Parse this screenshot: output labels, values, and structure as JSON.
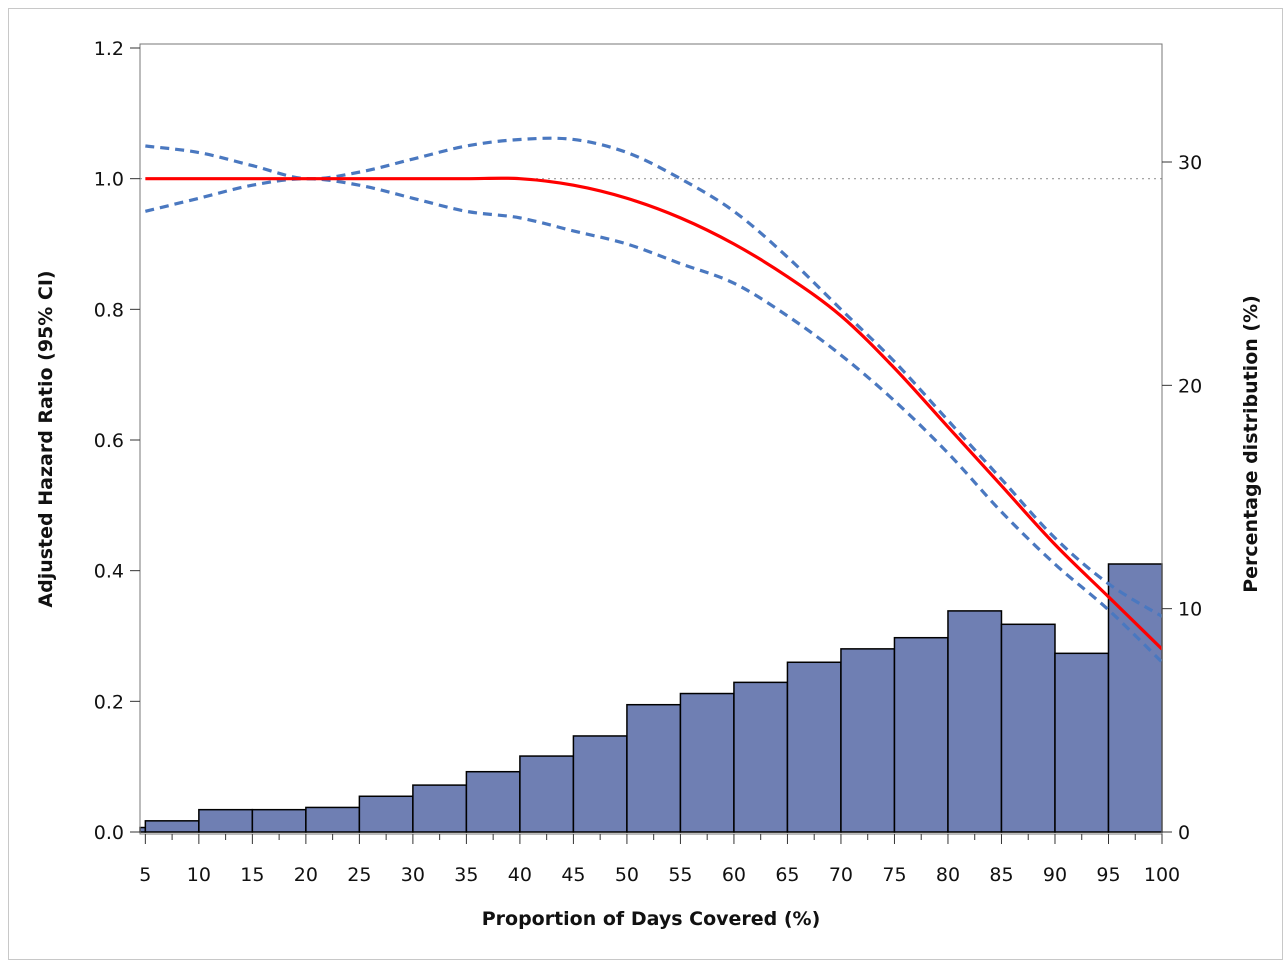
{
  "chart_data": {
    "type": "bar",
    "title": "",
    "xlabel": "Proportion of Days Covered (%)",
    "ylabel": "Adjusted Hazard Ratio (95% CI)",
    "y2label": "Percentage distribution (%)",
    "xlim": [
      4.5,
      100
    ],
    "ylim": [
      0,
      1.2
    ],
    "y2lim": [
      0,
      30
    ],
    "x_ticks": [
      5,
      10,
      15,
      20,
      25,
      30,
      35,
      40,
      45,
      50,
      55,
      60,
      65,
      70,
      75,
      80,
      85,
      90,
      95,
      100
    ],
    "y_ticks": [
      0.0,
      0.2,
      0.4,
      0.6,
      0.8,
      1.0,
      1.2
    ],
    "y_tick_labels": [
      "0.0",
      "0.2",
      "0.4",
      "0.6",
      "0.8",
      "1.0",
      "1.2"
    ],
    "y2_ticks": [
      0,
      10,
      20,
      30
    ],
    "y2_tick_labels": [
      "0",
      "10",
      "20",
      "30"
    ],
    "reference_line": {
      "y": 1.0,
      "style": "dotted",
      "color": "#999999"
    },
    "histogram": {
      "bins": [
        [
          4.5,
          5
        ],
        [
          5,
          10
        ],
        [
          10,
          15
        ],
        [
          15,
          20
        ],
        [
          20,
          25
        ],
        [
          25,
          30
        ],
        [
          30,
          35
        ],
        [
          35,
          40
        ],
        [
          40,
          45
        ],
        [
          45,
          50
        ],
        [
          50,
          55
        ],
        [
          55,
          60
        ],
        [
          60,
          65
        ],
        [
          65,
          70
        ],
        [
          70,
          75
        ],
        [
          75,
          80
        ],
        [
          80,
          85
        ],
        [
          85,
          90
        ],
        [
          90,
          95
        ],
        [
          95,
          100
        ]
      ],
      "percent": [
        0.2,
        0.5,
        1.0,
        1.0,
        1.1,
        1.6,
        2.1,
        2.7,
        3.4,
        4.3,
        5.7,
        6.2,
        6.7,
        7.6,
        8.2,
        8.7,
        9.9,
        9.3,
        8.0,
        12.0
      ],
      "color": "#6f7fb3",
      "edge_color": "#000000"
    },
    "series": [
      {
        "style": "solid",
        "color": "#ff0000",
        "x": [
          5,
          10,
          15,
          20,
          25,
          30,
          35,
          40,
          45,
          50,
          55,
          60,
          65,
          70,
          75,
          80,
          85,
          90,
          95,
          100
        ],
        "y": [
          1.0,
          1.0,
          1.0,
          1.0,
          1.0,
          1.0,
          1.0,
          1.0,
          0.99,
          0.97,
          0.94,
          0.9,
          0.85,
          0.79,
          0.71,
          0.62,
          0.53,
          0.44,
          0.36,
          0.28
        ]
      },
      {
        "style": "dashed",
        "color": "#4a78c0",
        "x": [
          5,
          10,
          15,
          20,
          25,
          30,
          35,
          40,
          45,
          50,
          55,
          60,
          65,
          70,
          75,
          80,
          85,
          90,
          95,
          100
        ],
        "y": [
          1.05,
          1.04,
          1.02,
          1.0,
          1.01,
          1.03,
          1.05,
          1.06,
          1.06,
          1.04,
          1.0,
          0.95,
          0.88,
          0.8,
          0.72,
          0.63,
          0.54,
          0.45,
          0.38,
          0.33
        ]
      },
      {
        "style": "dashed",
        "color": "#4a78c0",
        "x": [
          5,
          10,
          15,
          20,
          25,
          30,
          35,
          40,
          45,
          50,
          55,
          60,
          65,
          70,
          75,
          80,
          85,
          90,
          95,
          100
        ],
        "y": [
          0.95,
          0.97,
          0.99,
          1.0,
          0.99,
          0.97,
          0.95,
          0.94,
          0.92,
          0.9,
          0.87,
          0.84,
          0.79,
          0.73,
          0.66,
          0.58,
          0.49,
          0.41,
          0.34,
          0.26
        ]
      }
    ]
  }
}
